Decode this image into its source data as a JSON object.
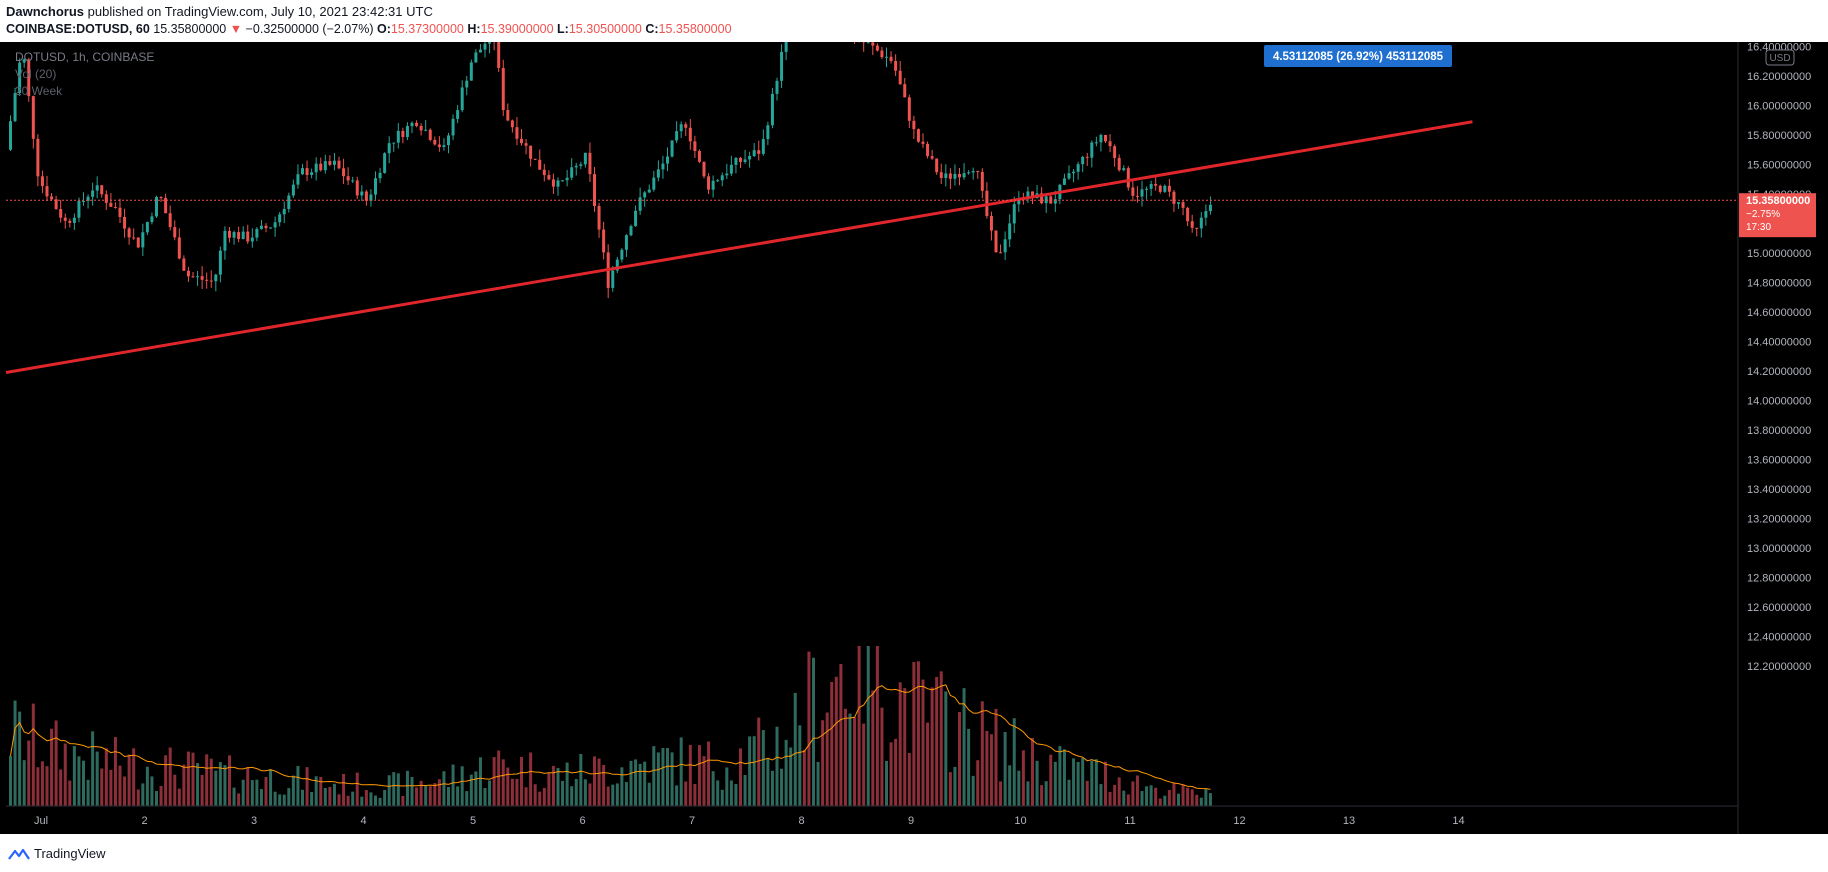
{
  "header": {
    "author": "Dawnchorus",
    "published_text": "published on TradingView.com, July 10, 2021 23:42:31 UTC"
  },
  "ohlc": {
    "symbol": "COINBASE:DOTUSD, 60",
    "last": "15.35800000",
    "change_arrow": "▼",
    "change": "−0.32500000 (−2.07%)",
    "o_label": "O:",
    "o": "15.37300000",
    "h_label": "H:",
    "h": "15.39000000",
    "l_label": "L:",
    "l": "15.30500000",
    "c_label": "C:",
    "c": "15.35800000"
  },
  "legend": {
    "series": "DOTUSD, 1h, COINBASE",
    "volume": "Vol (20)",
    "extra": "20 Week"
  },
  "measure_label": "4.53112085 (26.92%) 453112085",
  "price_tag": {
    "price": "15.35800000",
    "change": "−2.75%",
    "countdown": "17:30"
  },
  "currency_badge": "USD",
  "footer": {
    "brand": "TradingView"
  },
  "colors": {
    "background": "#000000",
    "up": "#26a69a",
    "down": "#ef5350",
    "trendline": "#e0262b",
    "measure": "#2962ff",
    "volume_ma": "#ff9800",
    "axis_text": "#b2b5be"
  },
  "chart_data": {
    "type": "candlestick",
    "y_axis": {
      "ticks": [
        "16.40000000",
        "16.20000000",
        "16.00000000",
        "15.80000000",
        "15.60000000",
        "15.40000000",
        "15.20000000",
        "15.00000000",
        "14.80000000",
        "14.60000000",
        "14.40000000",
        "14.20000000",
        "14.00000000",
        "13.80000000",
        "13.60000000",
        "13.40000000",
        "13.20000000",
        "13.00000000",
        "12.80000000",
        "12.60000000",
        "12.40000000",
        "12.20000000"
      ]
    },
    "x_axis": {
      "ticks": [
        "Jul",
        "2",
        "3",
        "4",
        "5",
        "6",
        "7",
        "8",
        "9",
        "10",
        "11",
        "12",
        "13",
        "14"
      ]
    },
    "price_path": [
      [
        0,
        15.7
      ],
      [
        0.15,
        16.4
      ],
      [
        0.3,
        15.5
      ],
      [
        0.55,
        15.2
      ],
      [
        0.8,
        15.45
      ],
      [
        1.0,
        15.3
      ],
      [
        1.2,
        15.05
      ],
      [
        1.4,
        15.4
      ],
      [
        1.65,
        14.85
      ],
      [
        1.9,
        14.8
      ],
      [
        2.0,
        15.15
      ],
      [
        2.2,
        15.1
      ],
      [
        2.45,
        15.2
      ],
      [
        2.7,
        15.55
      ],
      [
        3.0,
        15.6
      ],
      [
        3.3,
        15.35
      ],
      [
        3.5,
        15.75
      ],
      [
        3.75,
        15.9
      ],
      [
        4.0,
        15.7
      ],
      [
        4.25,
        16.3
      ],
      [
        4.45,
        16.5
      ],
      [
        4.55,
        15.95
      ],
      [
        4.85,
        15.6
      ],
      [
        5.05,
        15.45
      ],
      [
        5.3,
        15.65
      ],
      [
        5.5,
        14.8
      ],
      [
        5.75,
        15.3
      ],
      [
        6.0,
        15.6
      ],
      [
        6.2,
        15.9
      ],
      [
        6.4,
        15.45
      ],
      [
        6.65,
        15.6
      ],
      [
        6.9,
        15.7
      ],
      [
        7.1,
        16.4
      ],
      [
        7.15,
        16.55
      ],
      [
        7.45,
        16.6
      ],
      [
        7.9,
        16.4
      ],
      [
        8.1,
        16.3
      ],
      [
        8.3,
        15.8
      ],
      [
        8.55,
        15.5
      ],
      [
        8.85,
        15.6
      ],
      [
        9.05,
        14.95
      ],
      [
        9.25,
        15.4
      ],
      [
        9.55,
        15.35
      ],
      [
        9.8,
        15.6
      ],
      [
        10.0,
        15.8
      ],
      [
        10.1,
        15.7
      ],
      [
        10.3,
        15.4
      ],
      [
        10.55,
        15.45
      ],
      [
        10.75,
        15.3
      ],
      [
        10.85,
        15.1
      ],
      [
        11.0,
        15.36
      ]
    ],
    "trendline": {
      "from": [
        0,
        14.19
      ],
      "to": [
        13.1,
        15.89
      ]
    },
    "volume_path": [
      [
        0,
        0.35
      ],
      [
        0.5,
        0.25
      ],
      [
        1.0,
        0.2
      ],
      [
        1.5,
        0.18
      ],
      [
        2.0,
        0.15
      ],
      [
        2.5,
        0.13
      ],
      [
        3.0,
        0.1
      ],
      [
        3.5,
        0.1
      ],
      [
        4.0,
        0.13
      ],
      [
        4.5,
        0.2
      ],
      [
        5.0,
        0.15
      ],
      [
        5.5,
        0.18
      ],
      [
        6.0,
        0.22
      ],
      [
        6.5,
        0.2
      ],
      [
        7.0,
        0.3
      ],
      [
        7.5,
        0.6
      ],
      [
        7.8,
        0.75
      ],
      [
        8.0,
        0.55
      ],
      [
        8.3,
        0.45
      ],
      [
        8.6,
        0.4
      ],
      [
        9.0,
        0.3
      ],
      [
        9.5,
        0.2
      ],
      [
        10.0,
        0.15
      ],
      [
        10.5,
        0.08
      ],
      [
        11.0,
        0.05
      ]
    ]
  }
}
